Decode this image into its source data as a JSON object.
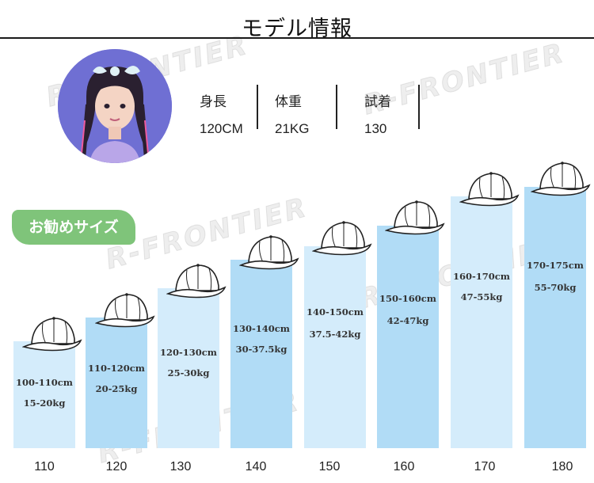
{
  "title": "モデル情報",
  "watermark_text": "R-FRONTIER",
  "model": {
    "columns": [
      {
        "label": "身長",
        "value": "120CM"
      },
      {
        "label": "体重",
        "value": "21KG"
      },
      {
        "label": "試着",
        "value": "130"
      }
    ]
  },
  "recommend_badge": "お勧めサイズ",
  "sizes": [
    {
      "size": "110",
      "height": "100-110cm",
      "weight": "15-20kg"
    },
    {
      "size": "120",
      "height": "110-120cm",
      "weight": "20-25kg"
    },
    {
      "size": "130",
      "height": "120-130cm",
      "weight": "25-30kg"
    },
    {
      "size": "140",
      "height": "130-140cm",
      "weight": "30-37.5kg"
    },
    {
      "size": "150",
      "height": "140-150cm",
      "weight": "37.5-42kg"
    },
    {
      "size": "160",
      "height": "150-160cm",
      "weight": "42-47kg"
    },
    {
      "size": "170",
      "height": "160-170cm",
      "weight": "47-55kg"
    },
    {
      "size": "180",
      "height": "170-175cm",
      "weight": "55-70kg"
    }
  ],
  "colors": {
    "bar_light": "#d4ecfb",
    "bar_dark": "#b1dcf6",
    "badge": "#7fc47a",
    "avatar_bg": "#6f6fd3"
  }
}
